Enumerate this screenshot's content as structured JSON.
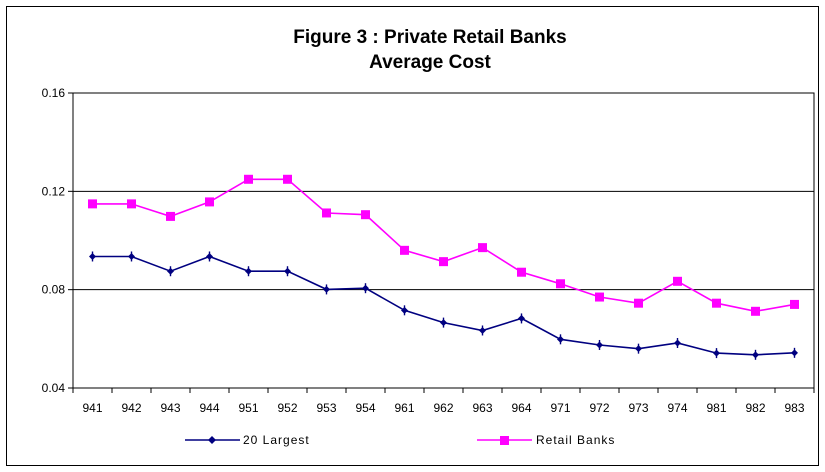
{
  "chart_data": {
    "type": "line",
    "title": "Figure 3 : Private Retail Banks",
    "subtitle": "Average Cost",
    "categories": [
      "941",
      "942",
      "943",
      "944",
      "951",
      "952",
      "953",
      "954",
      "961",
      "962",
      "963",
      "964",
      "971",
      "972",
      "973",
      "974",
      "981",
      "982",
      "983"
    ],
    "y_ticks": [
      "0.16",
      "0.12",
      "0.08",
      "0.04"
    ],
    "ylim": [
      0.04,
      0.16
    ],
    "grid": "horizontal major at 0.08, 0.12, 0.16",
    "legend_position": "bottom",
    "series": [
      {
        "name": "20 Largest",
        "color": "#000080",
        "marker": "diamond",
        "values": [
          0.0935,
          0.0935,
          0.0875,
          0.0935,
          0.0875,
          0.0875,
          0.0801,
          0.0806,
          0.0716,
          0.0666,
          0.0634,
          0.0683,
          0.0598,
          0.0575,
          0.056,
          0.0583,
          0.0542,
          0.0535,
          0.0543
        ]
      },
      {
        "name": "Retail Banks",
        "color": "#ff00ff",
        "marker": "square",
        "values": [
          0.1149,
          0.1149,
          0.1098,
          0.1157,
          0.1249,
          0.1249,
          0.1112,
          0.1105,
          0.096,
          0.0914,
          0.0971,
          0.0871,
          0.0824,
          0.077,
          0.0745,
          0.0834,
          0.0745,
          0.0712,
          0.074
        ]
      }
    ]
  }
}
